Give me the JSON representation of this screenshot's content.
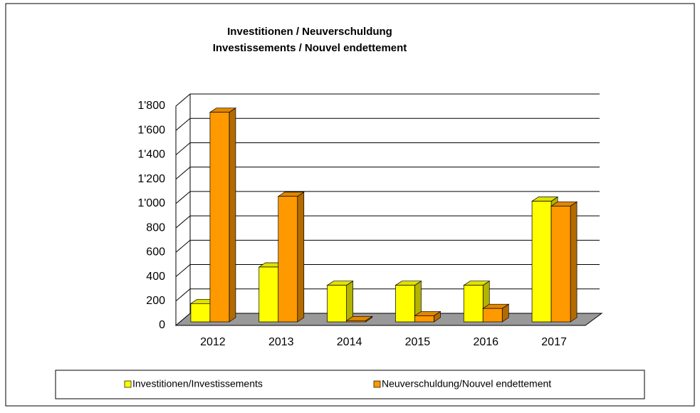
{
  "chart_data": {
    "type": "bar3d",
    "title": "Investitionen / Neuverschuldung",
    "subtitle": "Investissements / Nouvel endettement",
    "categories": [
      "2012",
      "2013",
      "2014",
      "2015",
      "2016",
      "2017"
    ],
    "series": [
      {
        "name": "Investitionen/Investissements",
        "color": "#ffff00",
        "values": [
          150,
          450,
          300,
          300,
          300,
          990
        ]
      },
      {
        "name": "Neuverschuldung/Nouvel endettement",
        "color": "#ff9900",
        "values": [
          1720,
          1030,
          10,
          50,
          110,
          950
        ]
      }
    ],
    "ylim": [
      0,
      1800
    ],
    "yticks": [
      0,
      200,
      400,
      600,
      800,
      {
        "value": 1000,
        "label": "1'000"
      },
      {
        "value": 1200,
        "label": "1'200"
      },
      {
        "value": 1400,
        "label": "1'400"
      },
      {
        "value": 1600,
        "label": "1'600"
      },
      {
        "value": 1800,
        "label": "1'800"
      }
    ],
    "grid": true
  }
}
